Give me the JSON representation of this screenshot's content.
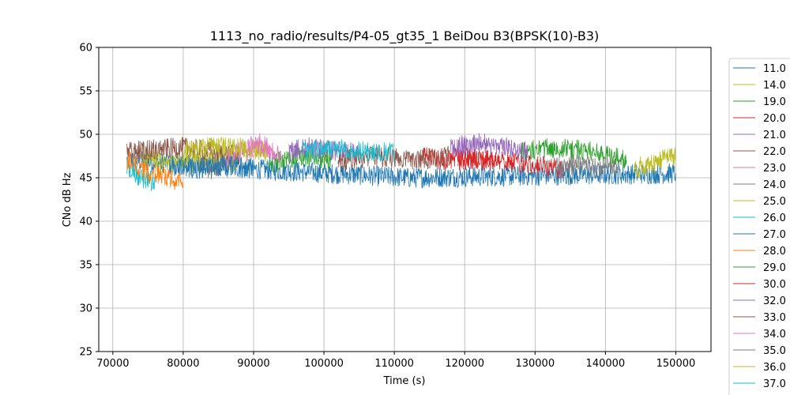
{
  "chart_data": {
    "type": "line",
    "title": "1113_no_radio/results/P4-05_gt35_1 BeiDou B3(BPSK(10)-B3)",
    "xlabel": "Time (s)",
    "ylabel": "CNo dB Hz",
    "xlim": [
      68000,
      155000
    ],
    "ylim": [
      25,
      60
    ],
    "x_ticks": [
      "70000",
      "80000",
      "90000",
      "100000",
      "110000",
      "120000",
      "130000",
      "140000",
      "150000"
    ],
    "y_ticks": [
      "25",
      "30",
      "35",
      "40",
      "45",
      "50",
      "55",
      "60"
    ],
    "grid": true,
    "legend_position": "right-outside",
    "series": [
      {
        "name": "11.0",
        "color": "#1f77b4",
        "x": [
          72000,
          90000,
          112000,
          150000
        ],
        "y": [
          47.0,
          46.0,
          45.0,
          45.5
        ]
      },
      {
        "name": "14.0",
        "color": "#bcbd22",
        "x": [
          74000,
          78000,
          83000,
          88000
        ],
        "y": [
          47.5,
          46.5,
          47.0,
          47.0
        ]
      },
      {
        "name": "19.0",
        "color": "#2ca02c",
        "x": [
          92000,
          94000,
          98000,
          101000
        ],
        "y": [
          46.5,
          47.0,
          47.5,
          47.0
        ]
      },
      {
        "name": "20.0",
        "color": "#d62728",
        "x": [
          114000,
          117000,
          120000,
          124000
        ],
        "y": [
          47.5,
          47.0,
          47.5,
          47.0
        ]
      },
      {
        "name": "21.0",
        "color": "#9467bd",
        "x": [
          95000,
          98000,
          102000,
          105000
        ],
        "y": [
          48.0,
          48.5,
          48.0,
          48.0
        ]
      },
      {
        "name": "22.0",
        "color": "#8c564b",
        "x": [
          72000,
          80000,
          84000,
          88000
        ],
        "y": [
          48.0,
          48.5,
          48.0,
          47.5
        ]
      },
      {
        "name": "23.0",
        "color": "#e377c2",
        "x": [
          86000,
          88000,
          91000,
          94000
        ],
        "y": [
          47.0,
          48.0,
          48.5,
          47.5
        ]
      },
      {
        "name": "24.0",
        "color": "#7f7f7f",
        "x": [
          82000,
          84000,
          86000
        ],
        "y": [
          46.5,
          46.0,
          46.5
        ]
      },
      {
        "name": "25.0",
        "color": "#bcbd22",
        "x": [
          80000,
          84000,
          88000,
          92000
        ],
        "y": [
          48.0,
          48.5,
          48.5,
          48.0
        ]
      },
      {
        "name": "26.0",
        "color": "#17becf",
        "x": [
          72000,
          74000,
          76000
        ],
        "y": [
          46.5,
          45.0,
          44.5
        ]
      },
      {
        "name": "27.0",
        "color": "#1f77b4",
        "x": [
          78000,
          82000,
          86000,
          90000
        ],
        "y": [
          46.5,
          46.0,
          46.5,
          46.0
        ]
      },
      {
        "name": "28.0",
        "color": "#ff7f0e",
        "x": [
          72000,
          75000,
          78000,
          80000
        ],
        "y": [
          47.0,
          45.5,
          45.0,
          44.5
        ]
      },
      {
        "name": "29.0",
        "color": "#2ca02c",
        "x": [
          128000,
          133000,
          138000,
          143000
        ],
        "y": [
          48.0,
          48.5,
          48.0,
          47.0
        ]
      },
      {
        "name": "30.0",
        "color": "#d62728",
        "x": [
          119000,
          124000,
          129000,
          134000
        ],
        "y": [
          47.0,
          47.0,
          46.5,
          46.0
        ]
      },
      {
        "name": "32.0",
        "color": "#9467bd",
        "x": [
          118000,
          122000,
          126000,
          129000
        ],
        "y": [
          48.5,
          49.0,
          48.5,
          48.0
        ]
      },
      {
        "name": "33.0",
        "color": "#8c564b",
        "x": [
          102000,
          108000,
          113000,
          118000
        ],
        "y": [
          47.0,
          47.5,
          47.0,
          47.5
        ]
      },
      {
        "name": "34.0",
        "color": "#e377c2",
        "x": [
          89000,
          91000,
          93000
        ],
        "y": [
          48.5,
          49.0,
          48.0
        ]
      },
      {
        "name": "35.0",
        "color": "#7f7f7f",
        "x": [
          133000,
          136000,
          139000,
          142000
        ],
        "y": [
          46.5,
          46.5,
          46.0,
          46.5
        ]
      },
      {
        "name": "36.0",
        "color": "#bcbd22",
        "x": [
          144000,
          146000,
          148000,
          150000
        ],
        "y": [
          46.0,
          46.5,
          47.0,
          47.5
        ]
      },
      {
        "name": "37.0",
        "color": "#17becf",
        "x": [
          97000,
          101000,
          105000,
          110000
        ],
        "y": [
          48.0,
          48.5,
          48.0,
          48.0
        ]
      }
    ]
  }
}
